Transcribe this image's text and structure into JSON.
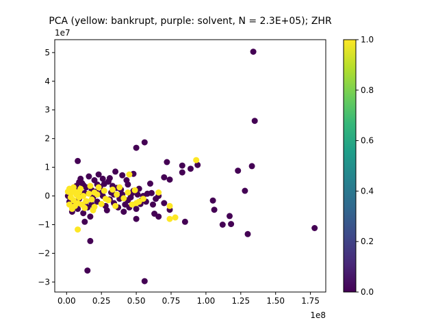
{
  "chart_data": {
    "type": "scatter",
    "title": "PCA (yellow: bankrupt, purple: solvent, N = 2.3E+05); ZHR",
    "xlabel": "",
    "ylabel": "",
    "x_offset_label": "1e8",
    "y_offset_label": "1e7",
    "x_scale": 100000000,
    "y_scale": 10000000,
    "xlim": [
      -0.085,
      1.86
    ],
    "ylim": [
      -3.35,
      5.45
    ],
    "x_ticks": [
      0.0,
      0.25,
      0.5,
      0.75,
      1.0,
      1.25,
      1.5,
      1.75
    ],
    "x_tick_labels": [
      "0.00",
      "0.25",
      "0.50",
      "0.75",
      "1.00",
      "1.25",
      "1.50",
      "1.75"
    ],
    "y_ticks": [
      -3,
      -2,
      -1,
      0,
      1,
      2,
      3,
      4,
      5
    ],
    "y_tick_labels": [
      "−3",
      "−2",
      "−1",
      "0",
      "1",
      "2",
      "3",
      "4",
      "5"
    ],
    "grid": false,
    "colors": {
      "solvent": "#440154",
      "bankrupt": "#fde725"
    },
    "colorbar": {
      "range": [
        0.0,
        1.0
      ],
      "ticks": [
        0.0,
        0.2,
        0.4,
        0.6,
        0.8,
        1.0
      ],
      "tick_labels": [
        "0.0",
        "0.2",
        "0.4",
        "0.6",
        "0.8",
        "1.0"
      ],
      "colormap": [
        "#440154",
        "#482878",
        "#3e4989",
        "#31688e",
        "#26828e",
        "#1f9e89",
        "#35b779",
        "#6ece58",
        "#b5de2b",
        "#fde725"
      ]
    },
    "series": [
      {
        "name": "solvent",
        "points": [
          [
            1.34,
            5.03
          ],
          [
            1.35,
            2.62
          ],
          [
            0.56,
            1.87
          ],
          [
            0.5,
            1.68
          ],
          [
            0.72,
            1.18
          ],
          [
            0.08,
            1.22
          ],
          [
            0.83,
            1.06
          ],
          [
            0.94,
            1.08
          ],
          [
            0.89,
            0.95
          ],
          [
            0.83,
            0.82
          ],
          [
            0.48,
            0.77
          ],
          [
            0.74,
            0.57
          ],
          [
            0.4,
            0.72
          ],
          [
            1.23,
            0.88
          ],
          [
            1.33,
            1.04
          ],
          [
            1.05,
            -0.16
          ],
          [
            1.06,
            -0.48
          ],
          [
            1.17,
            -0.7
          ],
          [
            1.28,
            0.18
          ],
          [
            1.12,
            -1.0
          ],
          [
            1.18,
            -0.98
          ],
          [
            1.3,
            -1.33
          ],
          [
            1.78,
            -1.12
          ],
          [
            0.85,
            -0.9
          ],
          [
            0.56,
            -2.97
          ],
          [
            0.15,
            -2.6
          ],
          [
            0.17,
            -1.57
          ],
          [
            0.13,
            -0.9
          ],
          [
            0.17,
            -0.72
          ],
          [
            0.66,
            -0.72
          ],
          [
            0.63,
            -0.62
          ],
          [
            0.5,
            -0.8
          ],
          [
            0.74,
            -0.48
          ],
          [
            0.6,
            0.43
          ],
          [
            0.7,
            0.65
          ],
          [
            0.01,
            0.0
          ],
          [
            0.03,
            0.15
          ],
          [
            0.05,
            -0.3
          ],
          [
            0.07,
            0.35
          ],
          [
            0.09,
            -0.1
          ],
          [
            0.11,
            0.45
          ],
          [
            0.13,
            0.1
          ],
          [
            0.15,
            -0.4
          ],
          [
            0.18,
            0.2
          ],
          [
            0.2,
            0.55
          ],
          [
            0.22,
            -0.2
          ],
          [
            0.24,
            0.32
          ],
          [
            0.26,
            0.0
          ],
          [
            0.28,
            -0.35
          ],
          [
            0.3,
            0.5
          ],
          [
            0.32,
            0.12
          ],
          [
            0.34,
            -0.25
          ],
          [
            0.36,
            0.28
          ],
          [
            0.38,
            -0.1
          ],
          [
            0.4,
            0.05
          ],
          [
            0.42,
            -0.3
          ],
          [
            0.44,
            0.4
          ],
          [
            0.46,
            -0.05
          ],
          [
            0.48,
            0.18
          ],
          [
            0.5,
            -0.45
          ],
          [
            0.52,
            0.25
          ],
          [
            0.54,
            -0.15
          ],
          [
            0.58,
            0.08
          ],
          [
            0.62,
            -0.3
          ],
          [
            0.66,
            0.0
          ],
          [
            0.7,
            -0.25
          ],
          [
            0.04,
            -0.55
          ],
          [
            0.06,
            0.22
          ],
          [
            0.1,
            0.6
          ],
          [
            0.12,
            -0.6
          ],
          [
            0.14,
            0.3
          ],
          [
            0.16,
            0.68
          ],
          [
            0.19,
            -0.05
          ],
          [
            0.21,
            0.15
          ],
          [
            0.23,
            0.75
          ],
          [
            0.27,
            0.42
          ],
          [
            0.29,
            -0.5
          ],
          [
            0.31,
            0.62
          ],
          [
            0.33,
            0.35
          ],
          [
            0.35,
            0.85
          ],
          [
            0.37,
            -0.4
          ],
          [
            0.39,
            0.22
          ],
          [
            0.41,
            -0.55
          ],
          [
            0.43,
            0.55
          ],
          [
            0.45,
            -0.4
          ],
          [
            0.47,
            0.1
          ],
          [
            0.51,
            0.05
          ],
          [
            0.53,
            -0.28
          ],
          [
            0.57,
            -0.2
          ],
          [
            0.61,
            0.1
          ],
          [
            0.02,
            -0.2
          ],
          [
            0.08,
            -0.45
          ],
          [
            0.1,
            0.0
          ],
          [
            0.14,
            -0.2
          ],
          [
            0.18,
            -0.3
          ],
          [
            0.25,
            0.1
          ],
          [
            0.34,
            0.05
          ],
          [
            0.44,
            -0.15
          ],
          [
            0.55,
            0.0
          ],
          [
            0.64,
            -0.1
          ],
          [
            0.09,
            0.48
          ],
          [
            0.22,
            0.4
          ],
          [
            0.31,
            -0.12
          ],
          [
            0.26,
            0.6
          ],
          [
            0.12,
            0.38
          ]
        ]
      },
      {
        "name": "bankrupt",
        "points": [
          [
            0.08,
            -1.17
          ],
          [
            0.93,
            1.25
          ],
          [
            0.45,
            0.75
          ],
          [
            0.78,
            -0.75
          ],
          [
            0.74,
            -0.8
          ],
          [
            0.74,
            -0.35
          ],
          [
            0.66,
            0.12
          ],
          [
            0.55,
            -0.1
          ],
          [
            0.5,
            -0.25
          ],
          [
            0.02,
            0.25
          ],
          [
            0.03,
            -0.05
          ],
          [
            0.04,
            0.2
          ],
          [
            0.05,
            -0.15
          ],
          [
            0.06,
            -0.35
          ],
          [
            0.07,
            0.05
          ],
          [
            0.08,
            -0.25
          ],
          [
            0.09,
            0.15
          ],
          [
            0.11,
            -0.3
          ],
          [
            0.12,
            0.0
          ],
          [
            0.14,
            -0.18
          ],
          [
            0.16,
            0.08
          ],
          [
            0.18,
            -0.12
          ],
          [
            0.2,
            -0.38
          ],
          [
            0.22,
            0.05
          ],
          [
            0.25,
            -0.28
          ],
          [
            0.27,
            0.18
          ],
          [
            0.3,
            -0.15
          ],
          [
            0.33,
            0.22
          ],
          [
            0.35,
            -0.35
          ],
          [
            0.38,
            0.3
          ],
          [
            0.41,
            -0.08
          ],
          [
            0.44,
            0.12
          ],
          [
            0.47,
            -0.3
          ],
          [
            0.49,
            0.2
          ],
          [
            0.52,
            -0.2
          ],
          [
            0.02,
            -0.3
          ],
          [
            0.03,
            0.1
          ],
          [
            0.05,
            0.3
          ],
          [
            0.1,
            0.25
          ],
          [
            0.13,
            -0.42
          ],
          [
            0.17,
            0.35
          ],
          [
            0.19,
            -0.5
          ],
          [
            0.23,
            0.3
          ],
          [
            0.28,
            -0.1
          ],
          [
            0.36,
            0.05
          ],
          [
            0.01,
            0.15
          ],
          [
            0.04,
            -0.45
          ],
          [
            0.06,
            0.15
          ],
          [
            0.09,
            -0.05
          ],
          [
            0.2,
            0.12
          ]
        ]
      }
    ]
  }
}
